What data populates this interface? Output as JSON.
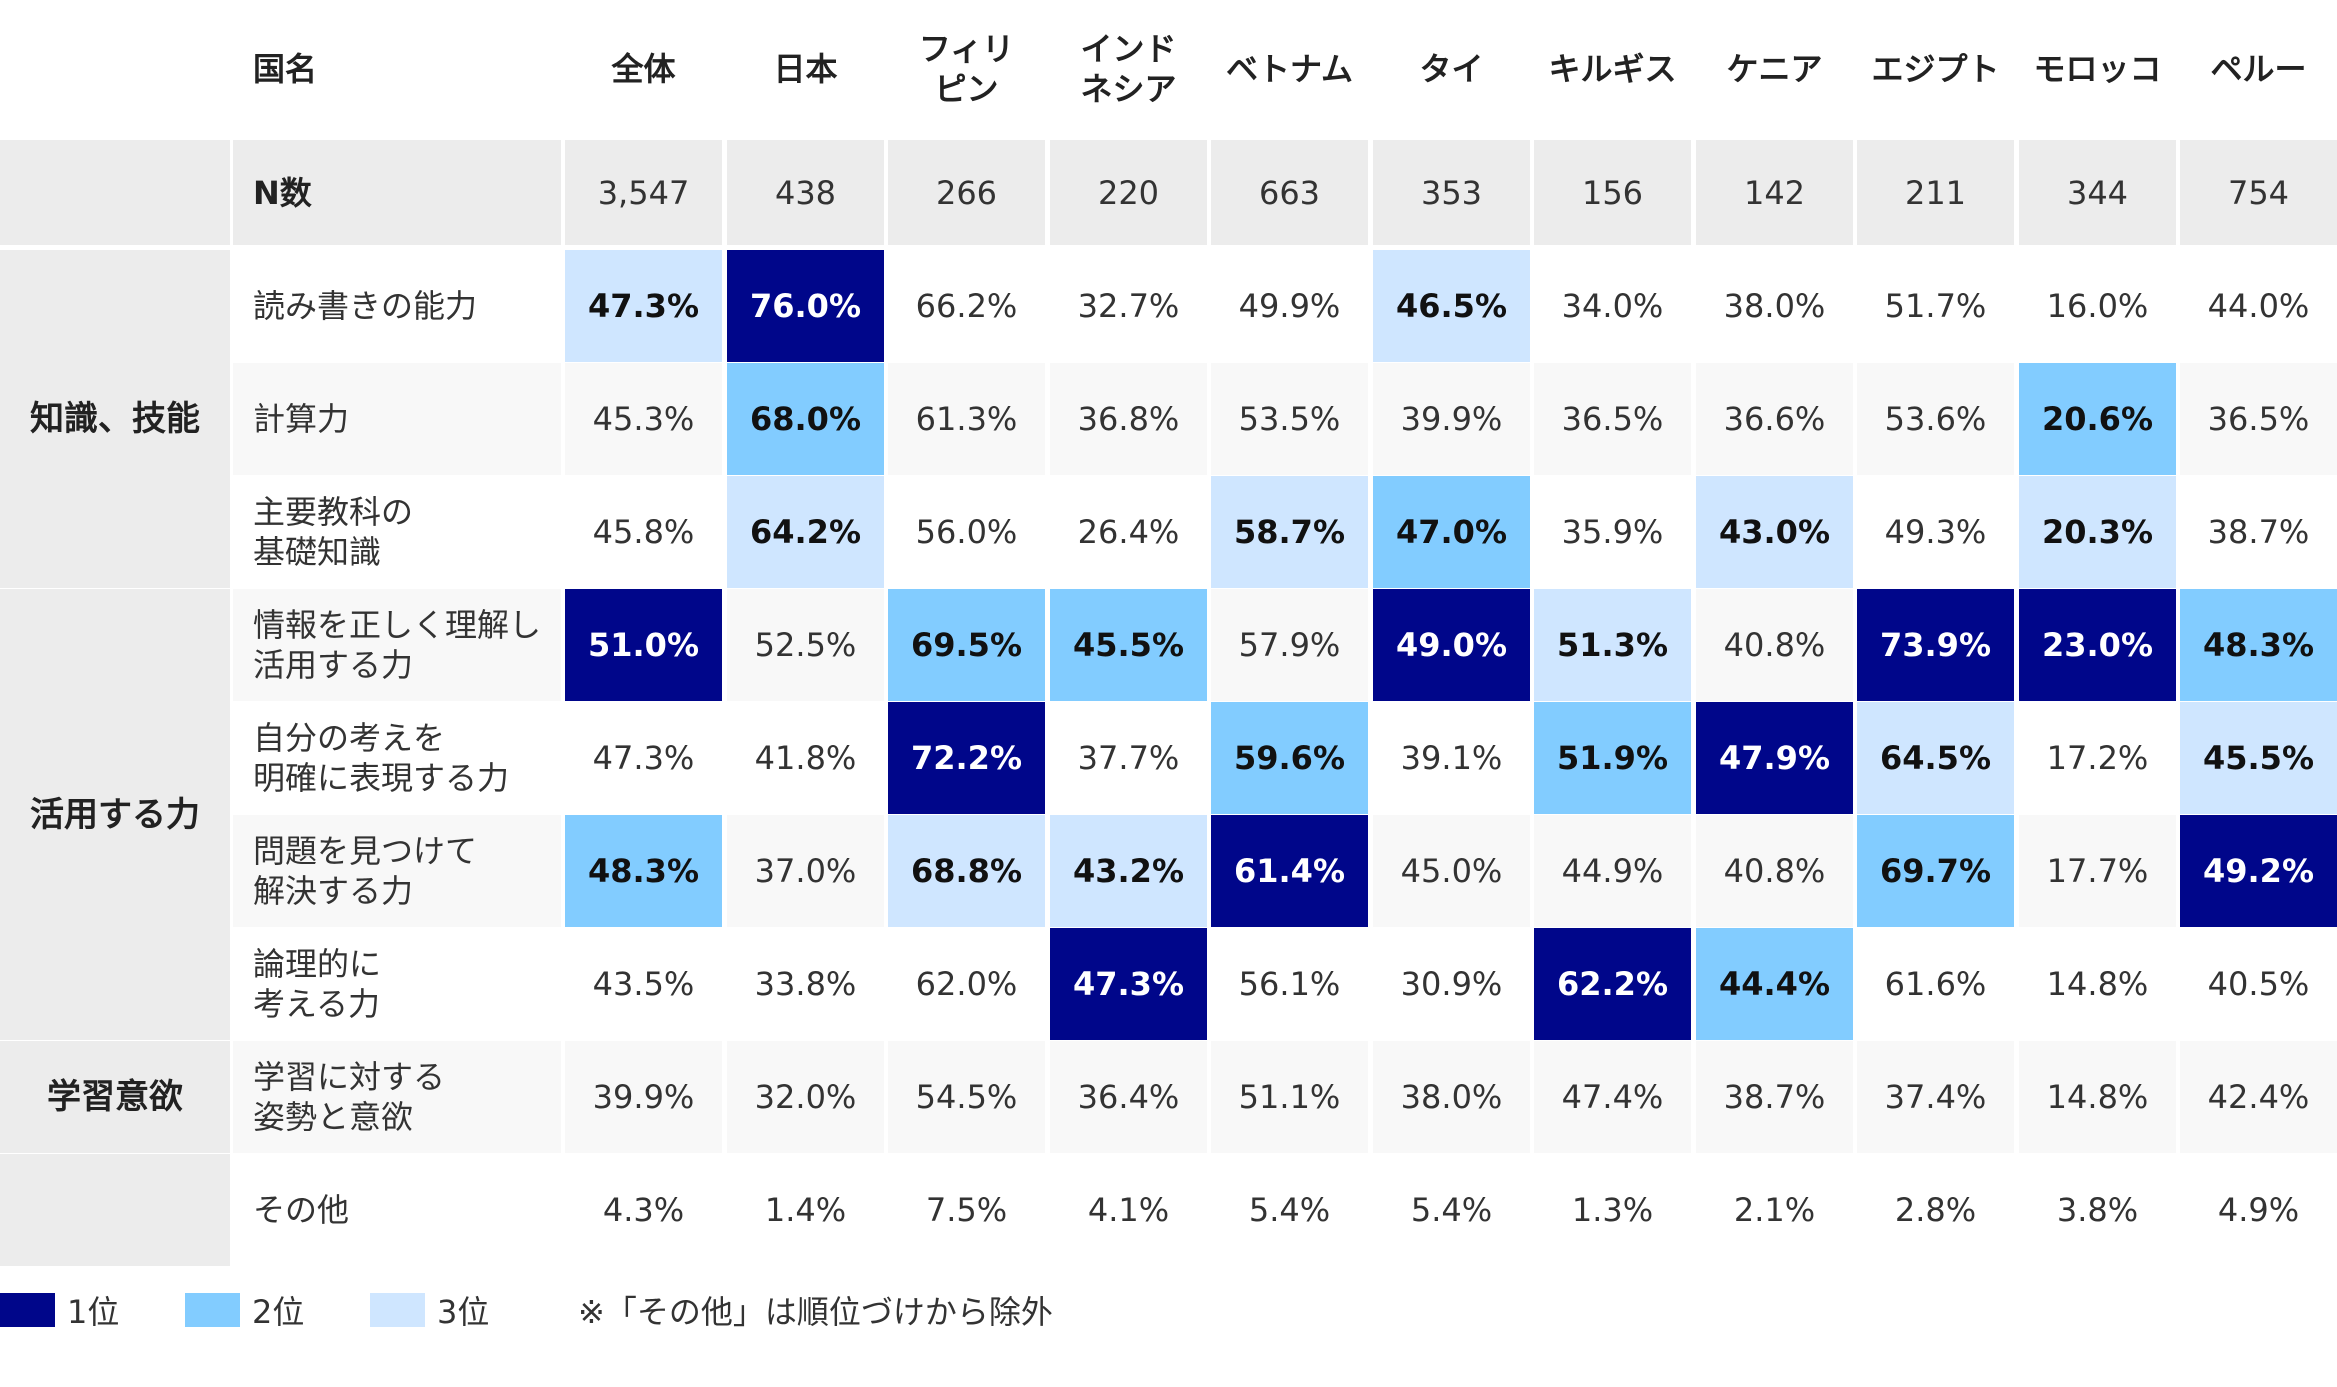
{
  "chart_data": {
    "type": "table",
    "corner_label": "国名",
    "columns": [
      "全体",
      "日本",
      "フィリ\nピン",
      "インド\nネシア",
      "ベトナム",
      "タイ",
      "キルギス",
      "ケニア",
      "エジプト",
      "モロッコ",
      "ペルー"
    ],
    "n_label": "N数",
    "n_values": [
      "3,547",
      "438",
      "266",
      "220",
      "663",
      "353",
      "156",
      "142",
      "211",
      "344",
      "754"
    ],
    "categories": [
      {
        "label": "知識、技能",
        "span": 3
      },
      {
        "label": "活用する力",
        "span": 4
      },
      {
        "label": "学習意欲",
        "span": 1
      },
      {
        "label": "",
        "span": 1
      }
    ],
    "rows": [
      {
        "label": "読み書きの能力",
        "values": [
          "47.3%",
          "76.0%",
          "66.2%",
          "32.7%",
          "49.9%",
          "46.5%",
          "34.0%",
          "38.0%",
          "51.7%",
          "16.0%",
          "44.0%"
        ],
        "ranks": [
          3,
          1,
          0,
          0,
          0,
          3,
          0,
          0,
          0,
          0,
          0
        ]
      },
      {
        "label": "計算力",
        "values": [
          "45.3%",
          "68.0%",
          "61.3%",
          "36.8%",
          "53.5%",
          "39.9%",
          "36.5%",
          "36.6%",
          "53.6%",
          "20.6%",
          "36.5%"
        ],
        "ranks": [
          0,
          2,
          0,
          0,
          0,
          0,
          0,
          0,
          0,
          2,
          0
        ]
      },
      {
        "label": "主要教科の\n基礎知識",
        "values": [
          "45.8%",
          "64.2%",
          "56.0%",
          "26.4%",
          "58.7%",
          "47.0%",
          "35.9%",
          "43.0%",
          "49.3%",
          "20.3%",
          "38.7%"
        ],
        "ranks": [
          0,
          3,
          0,
          0,
          3,
          2,
          0,
          3,
          0,
          3,
          0
        ]
      },
      {
        "label": "情報を正しく理解し\n活用する力",
        "values": [
          "51.0%",
          "52.5%",
          "69.5%",
          "45.5%",
          "57.9%",
          "49.0%",
          "51.3%",
          "40.8%",
          "73.9%",
          "23.0%",
          "48.3%"
        ],
        "ranks": [
          1,
          0,
          2,
          2,
          0,
          1,
          3,
          0,
          1,
          1,
          2
        ]
      },
      {
        "label": "自分の考えを\n明確に表現する力",
        "values": [
          "47.3%",
          "41.8%",
          "72.2%",
          "37.7%",
          "59.6%",
          "39.1%",
          "51.9%",
          "47.9%",
          "64.5%",
          "17.2%",
          "45.5%"
        ],
        "ranks": [
          0,
          0,
          1,
          0,
          2,
          0,
          2,
          1,
          3,
          0,
          3
        ]
      },
      {
        "label": "問題を見つけて\n解決する力",
        "values": [
          "48.3%",
          "37.0%",
          "68.8%",
          "43.2%",
          "61.4%",
          "45.0%",
          "44.9%",
          "40.8%",
          "69.7%",
          "17.7%",
          "49.2%"
        ],
        "ranks": [
          2,
          0,
          3,
          3,
          1,
          0,
          0,
          0,
          2,
          0,
          1
        ]
      },
      {
        "label": "論理的に\n考える力",
        "values": [
          "43.5%",
          "33.8%",
          "62.0%",
          "47.3%",
          "56.1%",
          "30.9%",
          "62.2%",
          "44.4%",
          "61.6%",
          "14.8%",
          "40.5%"
        ],
        "ranks": [
          0,
          0,
          0,
          1,
          0,
          0,
          1,
          2,
          0,
          0,
          0
        ]
      },
      {
        "label": "学習に対する\n姿勢と意欲",
        "values": [
          "39.9%",
          "32.0%",
          "54.5%",
          "36.4%",
          "51.1%",
          "38.0%",
          "47.4%",
          "38.7%",
          "37.4%",
          "14.8%",
          "42.4%"
        ],
        "ranks": [
          0,
          0,
          0,
          0,
          0,
          0,
          0,
          0,
          0,
          0,
          0
        ]
      },
      {
        "label": "その他",
        "values": [
          "4.3%",
          "1.4%",
          "7.5%",
          "4.1%",
          "5.4%",
          "5.4%",
          "1.3%",
          "2.1%",
          "2.8%",
          "3.8%",
          "4.9%"
        ],
        "ranks": [
          0,
          0,
          0,
          0,
          0,
          0,
          0,
          0,
          0,
          0,
          0
        ]
      }
    ],
    "rank_colors": {
      "1": "#00068a",
      "2": "#82ccff",
      "3": "#cfe6ff"
    }
  },
  "legend": {
    "items": [
      {
        "label": "1位",
        "color": "#00068a"
      },
      {
        "label": "2位",
        "color": "#82ccff"
      },
      {
        "label": "3位",
        "color": "#cfe6ff"
      }
    ],
    "note": "※「その他」は順位づけから除外"
  }
}
